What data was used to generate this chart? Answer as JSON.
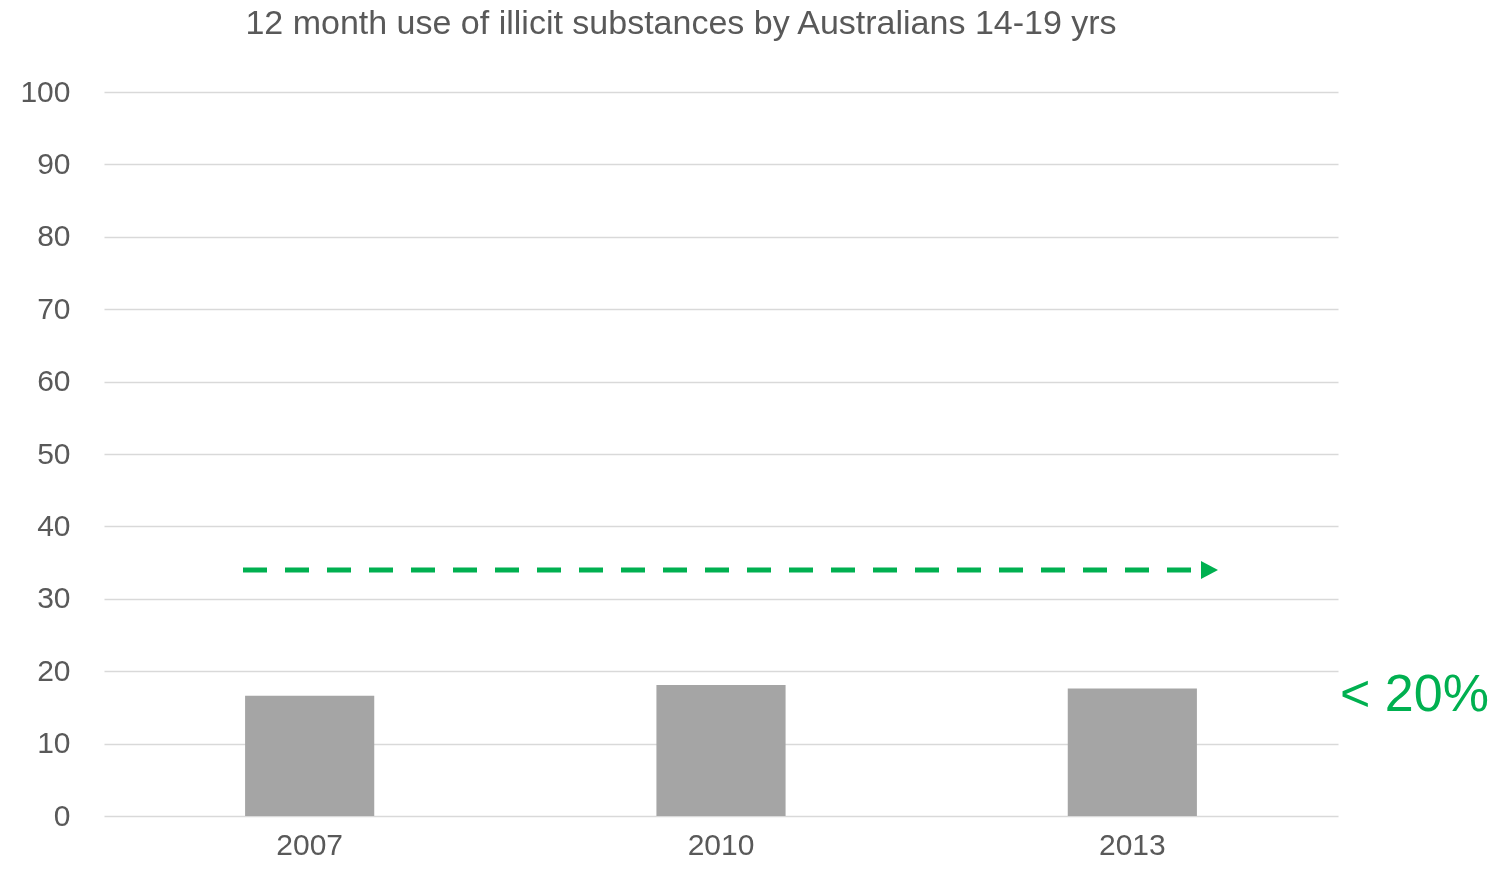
{
  "chart_data": {
    "type": "bar",
    "title": "12 month use of illicit substances by Australians 14-19 yrs",
    "categories": [
      "2007",
      "2010",
      "2013"
    ],
    "values": [
      16.6,
      18.1,
      17.6
    ],
    "color": "#a5a5a5",
    "ylim": [
      0,
      100
    ],
    "yticks": [
      0,
      10,
      20,
      30,
      40,
      50,
      60,
      70,
      80,
      90,
      100
    ],
    "grid": "y",
    "annotations": [
      "< 20%"
    ]
  }
}
